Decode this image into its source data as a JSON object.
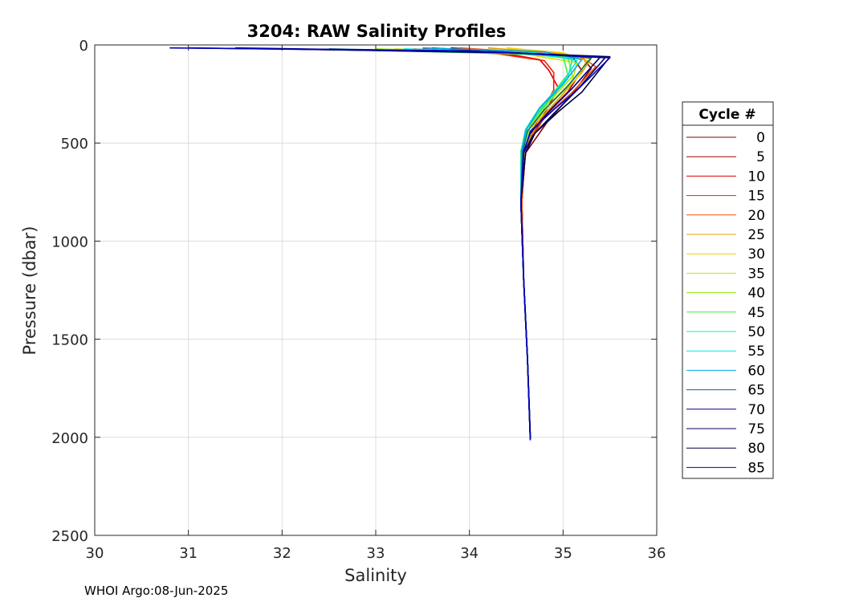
{
  "chart_data": {
    "type": "line",
    "title": "3204: RAW Salinity Profiles",
    "xlabel": "Salinity",
    "ylabel": "Pressure (dbar)",
    "xlim": [
      30,
      36
    ],
    "ylim": [
      0,
      2500
    ],
    "y_reversed": true,
    "grid": true,
    "xticks": [
      30,
      31,
      32,
      33,
      34,
      35,
      36
    ],
    "yticks": [
      0,
      500,
      1000,
      1500,
      2000,
      2500
    ],
    "legend": {
      "title": "Cycle #",
      "placement": "right-outside",
      "entries": [
        {
          "label": "0",
          "color": "#800000"
        },
        {
          "label": "5",
          "color": "#a00000"
        },
        {
          "label": "10",
          "color": "#dd0000"
        },
        {
          "label": "15",
          "color": "#ff1a00"
        },
        {
          "label": "20",
          "color": "#ff5000"
        },
        {
          "label": "25",
          "color": "#e0a000"
        },
        {
          "label": "30",
          "color": "#f0d000"
        },
        {
          "label": "35",
          "color": "#d8e000"
        },
        {
          "label": "40",
          "color": "#90ee00"
        },
        {
          "label": "45",
          "color": "#40f040"
        },
        {
          "label": "50",
          "color": "#20e8a0"
        },
        {
          "label": "55",
          "color": "#00e8e0"
        },
        {
          "label": "60",
          "color": "#00a8e8"
        },
        {
          "label": "65",
          "color": "#007080"
        },
        {
          "label": "70",
          "color": "#000080"
        },
        {
          "label": "75",
          "color": "#000060"
        },
        {
          "label": "80",
          "color": "#000040"
        },
        {
          "label": "85",
          "color": "#0000c0"
        }
      ]
    },
    "series": [
      {
        "cycle": 0,
        "color": "#800000",
        "points": [
          [
            33.6,
            15
          ],
          [
            34.5,
            40
          ],
          [
            35.2,
            60
          ],
          [
            35.3,
            120
          ],
          [
            35.1,
            250
          ],
          [
            34.85,
            380
          ],
          [
            34.6,
            550
          ],
          [
            34.55,
            800
          ],
          [
            34.58,
            1200
          ],
          [
            34.62,
            1600
          ],
          [
            34.65,
            2000
          ]
        ]
      },
      {
        "cycle": 5,
        "color": "#a00000",
        "points": [
          [
            33.8,
            15
          ],
          [
            34.6,
            35
          ],
          [
            35.1,
            60
          ],
          [
            35.2,
            130
          ],
          [
            35.05,
            240
          ],
          [
            34.8,
            360
          ],
          [
            34.6,
            520
          ],
          [
            34.56,
            800
          ],
          [
            34.58,
            1200
          ],
          [
            34.62,
            1600
          ],
          [
            34.65,
            1990
          ]
        ]
      },
      {
        "cycle": 10,
        "color": "#dd0000",
        "points": [
          [
            33.5,
            20
          ],
          [
            34.4,
            45
          ],
          [
            34.75,
            75
          ],
          [
            34.85,
            130
          ],
          [
            34.95,
            220
          ],
          [
            34.8,
            350
          ],
          [
            34.6,
            520
          ],
          [
            34.56,
            800
          ],
          [
            34.58,
            1200
          ],
          [
            34.62,
            1600
          ],
          [
            34.65,
            2000
          ]
        ]
      },
      {
        "cycle": 15,
        "color": "#ff1a00",
        "points": [
          [
            33.4,
            20
          ],
          [
            34.3,
            45
          ],
          [
            34.8,
            80
          ],
          [
            34.9,
            140
          ],
          [
            34.9,
            230
          ],
          [
            34.75,
            360
          ],
          [
            34.6,
            520
          ],
          [
            34.56,
            800
          ],
          [
            34.58,
            1200
          ],
          [
            34.62,
            1600
          ],
          [
            34.65,
            2000
          ]
        ]
      },
      {
        "cycle": 20,
        "color": "#ff5000",
        "points": [
          [
            33.9,
            15
          ],
          [
            34.7,
            40
          ],
          [
            35.2,
            65
          ],
          [
            35.35,
            110
          ],
          [
            35.1,
            240
          ],
          [
            34.8,
            370
          ],
          [
            34.6,
            530
          ],
          [
            34.56,
            800
          ],
          [
            34.58,
            1200
          ],
          [
            34.62,
            1600
          ],
          [
            34.65,
            2000
          ]
        ]
      },
      {
        "cycle": 25,
        "color": "#e0a000",
        "points": [
          [
            34.2,
            15
          ],
          [
            34.9,
            40
          ],
          [
            35.3,
            70
          ],
          [
            35.2,
            140
          ],
          [
            35.0,
            250
          ],
          [
            34.75,
            380
          ],
          [
            34.6,
            530
          ],
          [
            34.55,
            800
          ],
          [
            34.58,
            1200
          ],
          [
            34.62,
            1600
          ],
          [
            34.65,
            2000
          ]
        ]
      },
      {
        "cycle": 30,
        "color": "#f0d000",
        "points": [
          [
            34.4,
            15
          ],
          [
            35.0,
            40
          ],
          [
            35.25,
            80
          ],
          [
            35.15,
            170
          ],
          [
            34.95,
            260
          ],
          [
            34.7,
            390
          ],
          [
            34.58,
            540
          ],
          [
            34.55,
            800
          ],
          [
            34.58,
            1200
          ],
          [
            34.62,
            1600
          ],
          [
            34.65,
            2000
          ]
        ]
      },
      {
        "cycle": 35,
        "color": "#d8e000",
        "points": [
          [
            33.2,
            20
          ],
          [
            34.5,
            40
          ],
          [
            35.15,
            90
          ],
          [
            35.1,
            180
          ],
          [
            34.9,
            280
          ],
          [
            34.7,
            400
          ],
          [
            34.58,
            540
          ],
          [
            34.55,
            800
          ],
          [
            34.58,
            1200
          ],
          [
            34.62,
            1600
          ],
          [
            34.65,
            2000
          ]
        ]
      },
      {
        "cycle": 40,
        "color": "#90ee00",
        "points": [
          [
            33.0,
            20
          ],
          [
            34.5,
            40
          ],
          [
            35.05,
            60
          ],
          [
            35.1,
            160
          ],
          [
            34.85,
            290
          ],
          [
            34.65,
            410
          ],
          [
            34.57,
            540
          ],
          [
            34.55,
            800
          ],
          [
            34.58,
            1200
          ],
          [
            34.62,
            1600
          ],
          [
            34.65,
            2000
          ]
        ]
      },
      {
        "cycle": 45,
        "color": "#40f040",
        "points": [
          [
            32.8,
            25
          ],
          [
            34.4,
            45
          ],
          [
            35.0,
            55
          ],
          [
            35.05,
            150
          ],
          [
            34.8,
            300
          ],
          [
            34.62,
            420
          ],
          [
            34.55,
            540
          ],
          [
            34.55,
            800
          ],
          [
            34.58,
            1200
          ],
          [
            34.62,
            1600
          ],
          [
            34.65,
            2000
          ]
        ]
      },
      {
        "cycle": 50,
        "color": "#20e8a0",
        "points": [
          [
            33.0,
            25
          ],
          [
            34.6,
            45
          ],
          [
            35.1,
            70
          ],
          [
            35.05,
            170
          ],
          [
            34.8,
            310
          ],
          [
            34.6,
            430
          ],
          [
            34.55,
            545
          ],
          [
            34.55,
            800
          ],
          [
            34.58,
            1200
          ],
          [
            34.62,
            1600
          ],
          [
            34.65,
            2000
          ]
        ]
      },
      {
        "cycle": 55,
        "color": "#00e8e0",
        "points": [
          [
            33.3,
            20
          ],
          [
            34.7,
            40
          ],
          [
            35.15,
            80
          ],
          [
            35.0,
            190
          ],
          [
            34.75,
            320
          ],
          [
            34.6,
            430
          ],
          [
            34.56,
            545
          ],
          [
            34.55,
            800
          ],
          [
            34.58,
            1200
          ],
          [
            34.62,
            1600
          ],
          [
            34.65,
            2000
          ]
        ]
      },
      {
        "cycle": 60,
        "color": "#00a8e8",
        "points": [
          [
            33.5,
            15
          ],
          [
            34.8,
            35
          ],
          [
            35.2,
            75
          ],
          [
            35.0,
            200
          ],
          [
            34.75,
            320
          ],
          [
            34.6,
            440
          ],
          [
            34.56,
            540
          ],
          [
            34.55,
            800
          ],
          [
            34.58,
            1200
          ],
          [
            34.62,
            1600
          ],
          [
            34.65,
            2000
          ]
        ]
      },
      {
        "cycle": 65,
        "color": "#007080",
        "points": [
          [
            32.5,
            20
          ],
          [
            34.5,
            40
          ],
          [
            35.3,
            65
          ],
          [
            35.05,
            210
          ],
          [
            34.8,
            330
          ],
          [
            34.62,
            440
          ],
          [
            34.57,
            540
          ],
          [
            34.55,
            800
          ],
          [
            34.58,
            1200
          ],
          [
            34.62,
            1600
          ],
          [
            34.65,
            2000
          ]
        ]
      },
      {
        "cycle": 70,
        "color": "#000080",
        "points": [
          [
            32.0,
            20
          ],
          [
            34.4,
            40
          ],
          [
            35.4,
            60
          ],
          [
            35.1,
            220
          ],
          [
            34.85,
            340
          ],
          [
            34.65,
            450
          ],
          [
            34.58,
            540
          ],
          [
            34.55,
            800
          ],
          [
            34.58,
            1200
          ],
          [
            34.62,
            1600
          ],
          [
            34.65,
            2000
          ]
        ]
      },
      {
        "cycle": 75,
        "color": "#000060",
        "points": [
          [
            31.5,
            15
          ],
          [
            34.3,
            35
          ],
          [
            35.45,
            65
          ],
          [
            35.15,
            230
          ],
          [
            34.9,
            350
          ],
          [
            34.68,
            460
          ],
          [
            34.58,
            550
          ],
          [
            34.55,
            800
          ],
          [
            34.58,
            1200
          ],
          [
            34.62,
            1600
          ],
          [
            34.65,
            2005
          ]
        ]
      },
      {
        "cycle": 80,
        "color": "#000040",
        "points": [
          [
            31.0,
            15
          ],
          [
            34.2,
            35
          ],
          [
            35.5,
            60
          ],
          [
            35.2,
            240
          ],
          [
            34.95,
            340
          ],
          [
            34.7,
            450
          ],
          [
            34.6,
            550
          ],
          [
            34.55,
            800
          ],
          [
            34.58,
            1200
          ],
          [
            34.62,
            1600
          ],
          [
            34.65,
            2010
          ]
        ]
      },
      {
        "cycle": 85,
        "color": "#0000c0",
        "points": [
          [
            30.8,
            15
          ],
          [
            34.0,
            30
          ],
          [
            35.5,
            65
          ],
          [
            35.15,
            230
          ],
          [
            34.9,
            330
          ],
          [
            34.65,
            440
          ],
          [
            34.58,
            550
          ],
          [
            34.55,
            800
          ],
          [
            34.58,
            1200
          ],
          [
            34.62,
            1600
          ],
          [
            34.65,
            2015
          ]
        ]
      }
    ],
    "footer": "WHOI Argo:08-Jun-2025"
  }
}
